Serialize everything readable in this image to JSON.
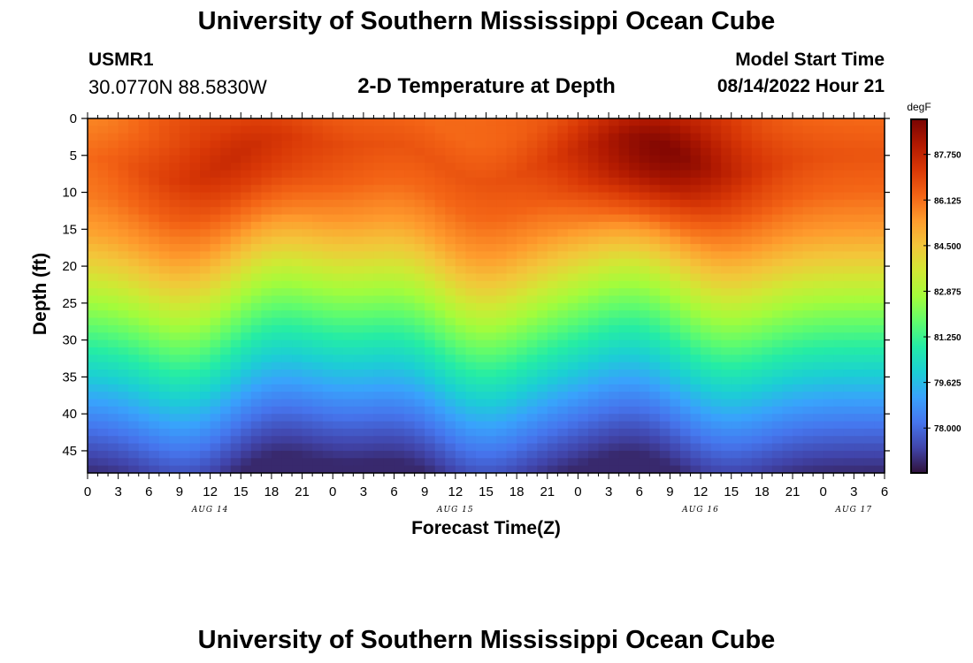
{
  "page": {
    "main_title": "University of Southern Mississippi Ocean Cube",
    "footer_title": "University of Southern Mississippi Ocean Cube",
    "station_id": "USMR1",
    "station_coords": "30.0770N  88.5830W",
    "plot_title": "2-D Temperature at Depth",
    "start_label": "Model Start Time",
    "start_value": "08/14/2022 Hour 21"
  },
  "chart_data": {
    "type": "heatmap",
    "title": "2-D Temperature at Depth",
    "xlabel": "Forecast Time(Z)",
    "ylabel": "Depth (ft)",
    "x_range_hours": [
      0,
      78
    ],
    "x_ticks": [
      {
        "hour": 0,
        "label": "0"
      },
      {
        "hour": 3,
        "label": "3"
      },
      {
        "hour": 6,
        "label": "6"
      },
      {
        "hour": 9,
        "label": "9"
      },
      {
        "hour": 12,
        "label": "12"
      },
      {
        "hour": 15,
        "label": "15"
      },
      {
        "hour": 18,
        "label": "18"
      },
      {
        "hour": 21,
        "label": "21"
      },
      {
        "hour": 24,
        "label": "0"
      },
      {
        "hour": 27,
        "label": "3"
      },
      {
        "hour": 30,
        "label": "6"
      },
      {
        "hour": 33,
        "label": "9"
      },
      {
        "hour": 36,
        "label": "12"
      },
      {
        "hour": 39,
        "label": "15"
      },
      {
        "hour": 42,
        "label": "18"
      },
      {
        "hour": 45,
        "label": "21"
      },
      {
        "hour": 48,
        "label": "0"
      },
      {
        "hour": 51,
        "label": "3"
      },
      {
        "hour": 54,
        "label": "6"
      },
      {
        "hour": 57,
        "label": "9"
      },
      {
        "hour": 60,
        "label": "12"
      },
      {
        "hour": 63,
        "label": "15"
      },
      {
        "hour": 66,
        "label": "18"
      },
      {
        "hour": 69,
        "label": "21"
      },
      {
        "hour": 72,
        "label": "0"
      },
      {
        "hour": 75,
        "label": "3"
      },
      {
        "hour": 78,
        "label": "6"
      }
    ],
    "date_labels": [
      {
        "hour": 12,
        "label": "AUG 14"
      },
      {
        "hour": 36,
        "label": "AUG 15"
      },
      {
        "hour": 60,
        "label": "AUG 16"
      },
      {
        "hour": 75,
        "label": "AUG 17"
      }
    ],
    "y_range_ft": [
      0,
      48
    ],
    "y_ticks": [
      0,
      5,
      10,
      15,
      20,
      25,
      30,
      35,
      40,
      45
    ],
    "colorbar": {
      "unit": "degF",
      "range": [
        76.4,
        89.0
      ],
      "tick_values": [
        87.75,
        86.125,
        84.5,
        82.875,
        81.25,
        79.625,
        78.0
      ],
      "tick_labels": [
        "87.750",
        "86.125",
        "84.500",
        "82.875",
        "81.250",
        "79.625",
        "78.000"
      ],
      "colors": [
        "#30123b",
        "#4145ab",
        "#4675ed",
        "#39a2fc",
        "#1bcfd4",
        "#24eca6",
        "#61fc6c",
        "#a4fc3b",
        "#d1e834",
        "#f3c63a",
        "#fe9b2d",
        "#f36315",
        "#d93806",
        "#b11901",
        "#7a0402"
      ]
    },
    "depth_profile": {
      "depths_ft": [
        0,
        5,
        10,
        15,
        20,
        25,
        30,
        35,
        40,
        45,
        48
      ],
      "base_degF": [
        86.2,
        86.6,
        86.2,
        85.4,
        84.1,
        82.6,
        81.2,
        79.9,
        78.6,
        77.4,
        76.8
      ]
    },
    "features": {
      "warm_cores": [
        {
          "hour": 14,
          "depth_ft": 5,
          "peak_degF": 87.6
        },
        {
          "hour": 56,
          "depth_ft": 5,
          "peak_degF": 88.9
        }
      ],
      "thermocline_crests": [
        {
          "hour": 10,
          "shift_ft": 4
        },
        {
          "hour": 38,
          "shift_ft": 4.5
        },
        {
          "hour": 62,
          "shift_ft": 3
        }
      ],
      "thermocline_troughs": [
        {
          "hour": 18,
          "shift_ft": -3
        },
        {
          "hour": 32,
          "shift_ft": -2.5
        },
        {
          "hour": 54,
          "shift_ft": -3
        }
      ]
    }
  }
}
